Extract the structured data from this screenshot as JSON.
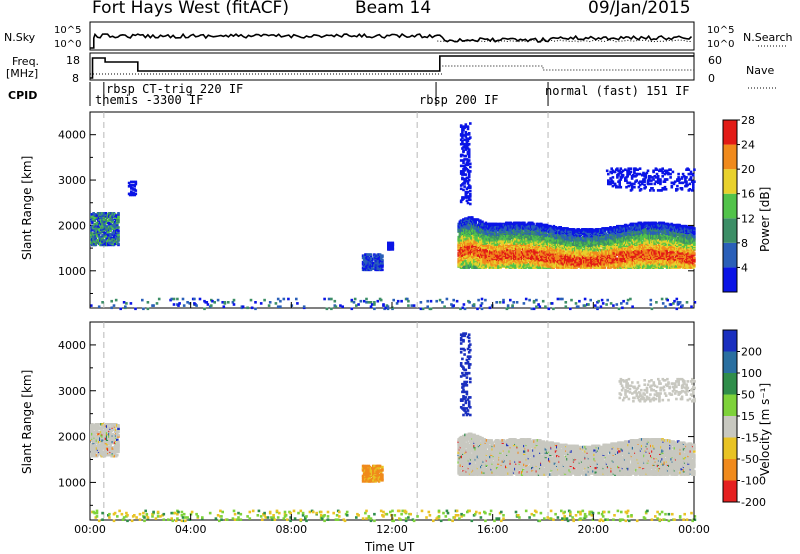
{
  "header": {
    "site": "Fort Hays West (fitACF)",
    "beam": "Beam 14",
    "date": "09/Jan/2015"
  },
  "summary_panels": {
    "nsky_label": "N.Sky",
    "nsky_ticks": [
      "10^5",
      "10^0"
    ],
    "nsearch_label": "N.Search",
    "freq_label": "Freq.",
    "freq_unit": "[MHz]",
    "freq_ticks": [
      "18",
      "8"
    ],
    "nave_label": "Nave",
    "nave_ticks": [
      "60",
      "0"
    ],
    "cpid_label": "CPID",
    "modes": [
      {
        "text": "rbsp CT-trig 220 IF"
      },
      {
        "text": "themis -3300 IF"
      },
      {
        "text": "rbsp 200 IF"
      },
      {
        "text": "normal (fast) 151 IF"
      }
    ]
  },
  "chart_data": [
    {
      "type": "heatmap",
      "name": "power",
      "ylabel": "Slant Range [km]",
      "y_ticks": [
        1000,
        2000,
        3000,
        4000
      ],
      "ylim": [
        180,
        4500
      ],
      "colorbar_label": "Power [dB]",
      "colorbar_ticks": [
        4,
        8,
        12,
        16,
        20,
        24,
        28
      ],
      "colorbar_colors": [
        "#0a14e6",
        "#2a5fb8",
        "#3c8e66",
        "#52c34a",
        "#e8d12c",
        "#f08a1c",
        "#e21b16"
      ],
      "echo_regions": [
        {
          "x_hours": [
            0.0,
            1.1
          ],
          "range_km": [
            1600,
            2300
          ],
          "level": "mixed"
        },
        {
          "x_hours": [
            10.8,
            11.6
          ],
          "range_km": [
            1050,
            1400
          ],
          "level": "low"
        },
        {
          "x_hours": [
            14.6,
            24.0
          ],
          "range_km": [
            1150,
            1600
          ],
          "level": "high"
        }
      ]
    },
    {
      "type": "heatmap",
      "name": "velocity",
      "ylabel": "Slant Range [km]",
      "y_ticks": [
        1000,
        2000,
        3000,
        4000
      ],
      "ylim": [
        180,
        4500
      ],
      "colorbar_label": "Velocity [m s⁻¹]",
      "colorbar_ticks": [
        200,
        100,
        50,
        15,
        -15,
        -50,
        -100,
        -200
      ],
      "colorbar_colors": [
        "#1a2fbf",
        "#2a6fa0",
        "#2f8d4a",
        "#7ed23a",
        "#c8c8c0",
        "#e8c324",
        "#f08a1c",
        "#e52020"
      ]
    }
  ],
  "x_axis": {
    "label": "Time UT",
    "ticks": [
      "00:00",
      "04:00",
      "08:00",
      "12:00",
      "16:00",
      "20:00",
      "00:00"
    ]
  }
}
